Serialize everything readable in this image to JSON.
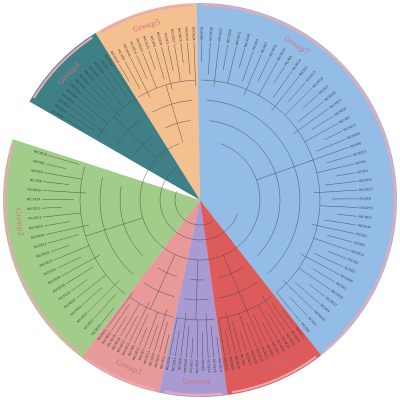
{
  "figure": {
    "title": "",
    "groups": [
      {
        "id": "group1",
        "label": "Group1",
        "color": "#e89a98",
        "leaf_count": 13,
        "leaves": [
          "NtCXE12",
          "NtCXE17",
          "NtCXE32",
          "NtCXE13",
          "NtCXE2",
          "NtCXE11",
          "NtCXE8",
          "NtCXE10",
          "NtCXE13",
          "NtCXE18",
          "NtCXE38",
          "NtCXE51",
          "NtCXE61"
        ]
      },
      {
        "id": "group2",
        "label": "Group2",
        "color": "#a2cc8a",
        "leaf_count": 22,
        "leaves": [
          "PtCXE19",
          "NtCXE21",
          "NtCXE27",
          "NtCXE24",
          "NtCXE29",
          "PtCXE20",
          "NtCXE18",
          "NtCXE39",
          "NtCXE31",
          "NtCXE23",
          "NtCXE16",
          "StCXE22",
          "NtCXE46",
          "NtCXE36",
          "PtCXE12",
          "NtCXE11",
          "NtCXE14",
          "PtCXE18",
          "NtCXE8",
          "NtCXE4",
          "NtCXE5",
          "NtCXE18"
        ]
      },
      {
        "id": "group3",
        "label": "Group3",
        "color": "#3f7f86",
        "leaf_count": 13,
        "leaves": [
          "NtCXE30",
          "NtCXE33",
          "StCXE12",
          "NtCXE24",
          "NtCXE42",
          "NtCXE10",
          "NtCXE34",
          "NtCXE17",
          "NtCXE54",
          "NtCXE47",
          "NtCXE43",
          "StCXE7",
          "NtCXE44"
        ]
      },
      {
        "id": "group4",
        "label": "Group4",
        "color": "#a99ad3",
        "leaf_count": 10,
        "leaves": [
          "NtCXE14",
          "NtCXE19",
          "StCXE16",
          "NtCXE6",
          "NtCXE25",
          "PtCXE27",
          "NtCXE28",
          "NtCXE8",
          "NtCXE14",
          "NtCXE26"
        ]
      },
      {
        "id": "group5",
        "label": "Group5",
        "color": "#f5c08f",
        "leaf_count": 13,
        "leaves": [
          "NtCXE18",
          "NtCXE8",
          "NtCXE45",
          "PtCXE14",
          "NtCXE14",
          "NtCXE35",
          "NtCXE5",
          "NtCXE49",
          "PtCXE3",
          "NtCXE57",
          "NtCXE25",
          "NtCXE30",
          "NtCXE34"
        ]
      },
      {
        "id": "group6",
        "label": "Group6",
        "color": "#dd5b5b",
        "leaf_count": 15,
        "leaves": [
          "NtCXE13",
          "NtCXE20",
          "NtCXE19",
          "PtCXE10",
          "NtCXE50",
          "NtCXE22",
          "NtCXE41",
          "PtCXE17",
          "NtCXE20",
          "NtCXE26",
          "StCXE11",
          "NtCXE9",
          "NtCXE56",
          "NtCXE24",
          "NtCXE12"
        ]
      },
      {
        "id": "group7",
        "label": "Group7",
        "color": "#93bde6",
        "leaf_count": 45,
        "leaves": [
          "NtCXE16",
          "NtCXE16",
          "NtCXE52",
          "NtCXE28",
          "NtCXE15",
          "NtCXE48",
          "PtCXE4",
          "NtCXE7",
          "NtCXE31",
          "NtCXE19",
          "PtCXE8",
          "StCXE14",
          "NtCXE1",
          "StCXE13",
          "NtCXE19",
          "NtCXE3",
          "NtCXE40",
          "NtCXE23",
          "NtCXE37",
          "NtCXE2",
          "NtCXE15",
          "NtCXE58",
          "PtCXE6",
          "NtCXE53",
          "PtCXE5",
          "StCXE1",
          "NtCXE10",
          "NtCXE27",
          "PtCXE9",
          "NtCXE55",
          "NtCXE21",
          "NtCXE44",
          "PtCXE1",
          "StCXE5",
          "NtCXE33",
          "PtCXE2",
          "StCXE6",
          "NtCXE60",
          "NtCXE3",
          "NtCXE59",
          "PtCXE11",
          "StCXE4",
          "NtCXE29",
          "StCXE2",
          "NtCXE6"
        ]
      }
    ],
    "ring_color": "#e8a9b5"
  }
}
